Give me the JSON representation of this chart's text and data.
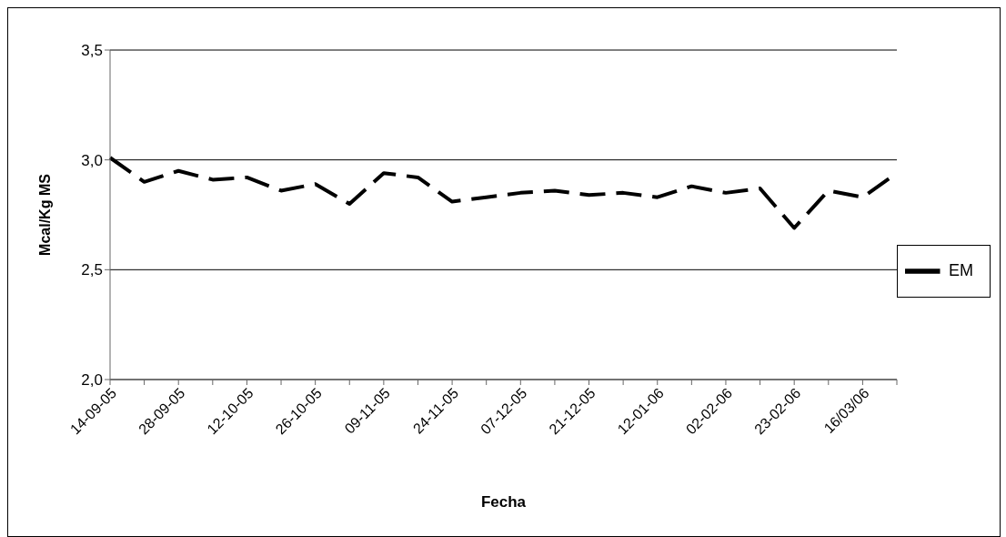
{
  "chart_data": {
    "type": "line",
    "xlabel": "Fecha",
    "ylabel": "Mcal/Kg MS",
    "categories": [
      "14-09-05",
      null,
      "28-09-05",
      null,
      "12-10-05",
      null,
      "26-10-05",
      null,
      "09-11-05",
      null,
      "24-11-05",
      null,
      "07-12-05",
      null,
      "21-12-05",
      null,
      "12-01-06",
      null,
      "02-02-06",
      null,
      "23-02-06",
      null,
      "16/03/06",
      null
    ],
    "series": [
      {
        "name": "EM",
        "color": "#000000",
        "values": [
          3.01,
          2.9,
          2.95,
          2.91,
          2.92,
          2.86,
          2.89,
          2.8,
          2.94,
          2.92,
          2.81,
          2.83,
          2.85,
          2.86,
          2.84,
          2.85,
          2.83,
          2.88,
          2.85,
          2.87,
          2.69,
          2.86,
          2.83,
          2.94
        ]
      }
    ],
    "ylim": [
      2,
      3.5
    ],
    "yticks": [
      {
        "value": 2,
        "label": "2,0"
      },
      {
        "value": 2.5,
        "label": "2,5"
      },
      {
        "value": 3,
        "label": "3,0"
      },
      {
        "value": 3.5,
        "label": "3,5"
      }
    ],
    "grid": "y",
    "legend": "right",
    "marker": "none",
    "line_style": "dashed"
  }
}
